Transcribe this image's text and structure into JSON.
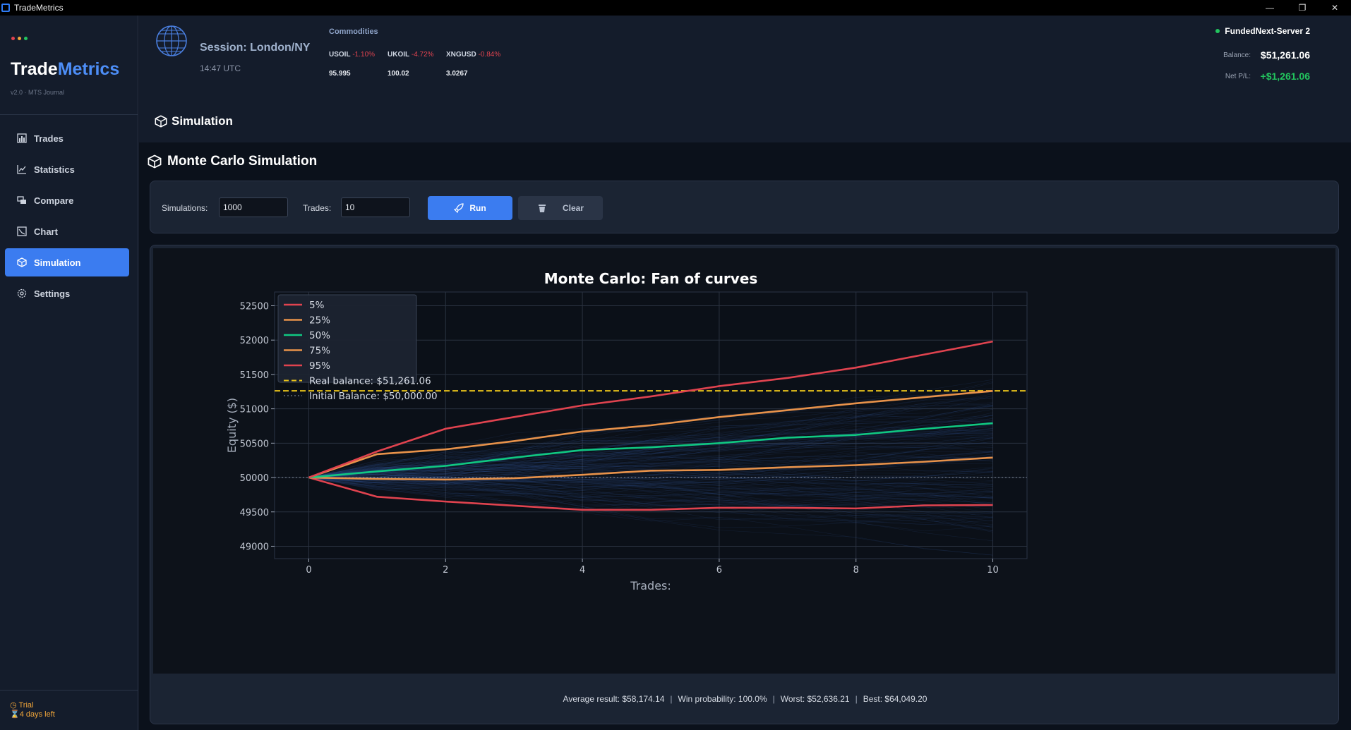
{
  "window": {
    "title": "TradeMetrics",
    "buttons": [
      "—",
      "❐",
      "✕"
    ]
  },
  "sidebar": {
    "dots_colors": [
      "#e0434f",
      "#f0a53a",
      "#22c55e"
    ],
    "brand_part1": "Trade",
    "brand_part2": "Metrics",
    "brand_sub": "v2.0 · MTS Journal",
    "items": [
      {
        "label": "Trades",
        "icon": "bar-chart-icon",
        "active": false
      },
      {
        "label": "Statistics",
        "icon": "line-chart-icon",
        "active": false
      },
      {
        "label": "Compare",
        "icon": "compare-icon",
        "active": false
      },
      {
        "label": "Chart",
        "icon": "chart-icon",
        "active": false
      },
      {
        "label": "Simulation",
        "icon": "cube-icon",
        "active": true
      },
      {
        "label": "Settings",
        "icon": "gear-icon",
        "active": false
      }
    ],
    "trial_label": "Trial",
    "trial_days": "4 days left"
  },
  "header": {
    "session": "Session: London/NY",
    "time": "14:47 UTC",
    "commodities_title": "Commodities",
    "commodities": [
      {
        "symbol": "USOIL",
        "change": "-1.10%",
        "value": "95.995"
      },
      {
        "symbol": "UKOIL",
        "change": "-4.72%",
        "value": "100.02"
      },
      {
        "symbol": "XNGUSD",
        "change": "-0.84%",
        "value": "3.0267"
      }
    ],
    "server": "FundedNext-Server 2",
    "balance_label": "Balance:",
    "balance_value": "$51,261.06",
    "pnl_label": "Net P/L:",
    "pnl_value": "+$1,261.06",
    "page_title": "Simulation"
  },
  "main": {
    "section_title": "Monte Carlo Simulation",
    "simulations_label": "Simulations:",
    "simulations_value": "1000",
    "trades_label": "Trades:",
    "trades_value": "10",
    "run_label": "Run",
    "clear_label": "Clear",
    "stats": {
      "average": "Average result: $58,174.14",
      "win_prob": "Win probability: 100.0%",
      "worst": "Worst: $52,636.21",
      "best": "Best: $64,049.20"
    }
  },
  "chart_data": {
    "type": "line",
    "title": "Monte Carlo: Fan of curves",
    "xlabel": "Trades:",
    "ylabel": "Equity ($)",
    "xlim": [
      -0.5,
      10.5
    ],
    "ylim": [
      48820,
      52700
    ],
    "xticks": [
      0,
      2,
      4,
      6,
      8,
      10
    ],
    "yticks": [
      49000,
      49500,
      50000,
      50500,
      51000,
      51500,
      52000,
      52500
    ],
    "grid": true,
    "legend_position": "top-left",
    "x": [
      0,
      1,
      2,
      3,
      4,
      5,
      6,
      7,
      8,
      9,
      10
    ],
    "series": [
      {
        "name": "5%",
        "color": "#e0434f",
        "values": [
          50000,
          49720,
          49650,
          49590,
          49530,
          49530,
          49560,
          49560,
          49550,
          49595,
          49600
        ]
      },
      {
        "name": "25%",
        "color": "#e8924a",
        "values": [
          50000,
          49980,
          49970,
          49990,
          50040,
          50100,
          50110,
          50150,
          50180,
          50230,
          50290
        ]
      },
      {
        "name": "50%",
        "color": "#10c882",
        "values": [
          50000,
          50090,
          50170,
          50290,
          50400,
          50440,
          50500,
          50580,
          50620,
          50710,
          50790
        ]
      },
      {
        "name": "75%",
        "color": "#e8924a",
        "values": [
          50000,
          50340,
          50410,
          50530,
          50670,
          50760,
          50880,
          50980,
          51080,
          51170,
          51260
        ]
      },
      {
        "name": "95%",
        "color": "#e0434f",
        "values": [
          50000,
          50380,
          50710,
          50880,
          51050,
          51180,
          51330,
          51450,
          51600,
          51790,
          51980
        ]
      }
    ],
    "reference_lines": [
      {
        "name": "Real balance: $51,261.06",
        "value": 51261.06,
        "color": "#e8c21a",
        "style": "dashed"
      },
      {
        "name": "Initial Balance: $50,000.00",
        "value": 50000,
        "color": "#8a93a6",
        "style": "dotted"
      }
    ]
  }
}
